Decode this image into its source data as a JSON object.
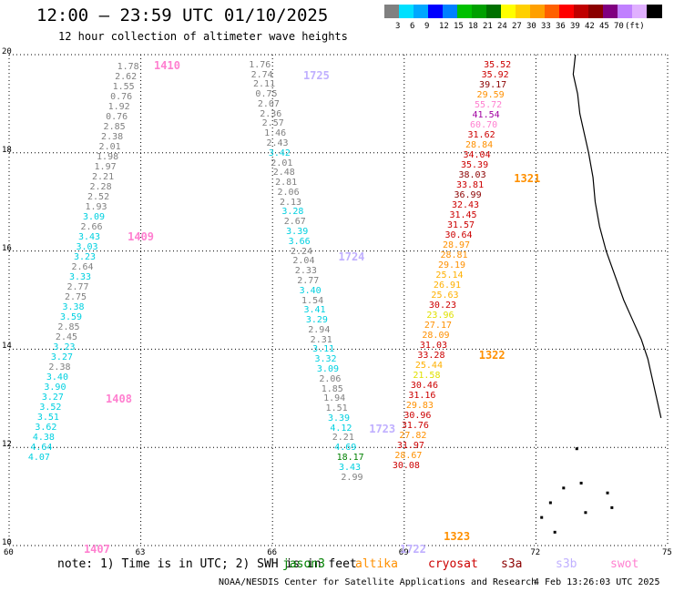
{
  "title": "12:00 – 23:59 UTC 01/10/2025",
  "subtitle": "12 hour collection of altimeter wave heights",
  "colorbar": {
    "colors": [
      "#808080",
      "#00e0ff",
      "#00a8ff",
      "#0000ff",
      "#0080ff",
      "#00c000",
      "#00a000",
      "#007000",
      "#ffff00",
      "#ffd000",
      "#ffa000",
      "#ff6000",
      "#ff0000",
      "#c00000",
      "#8b0000",
      "#800080",
      "#c080ff",
      "#e0b0ff",
      "#000000"
    ],
    "labels": [
      "3",
      "6",
      "9",
      "12",
      "15",
      "18",
      "21",
      "24",
      "27",
      "30",
      "33",
      "36",
      "39",
      "42",
      "45",
      "70",
      "(ft)"
    ]
  },
  "map": {
    "lon_range": [
      60,
      75
    ],
    "lat_range": [
      10,
      20
    ],
    "x_ticks": [
      "60",
      "63",
      "66",
      "69",
      "72",
      "75"
    ],
    "y_ticks": [
      "10",
      "12",
      "14",
      "16",
      "18",
      "20"
    ],
    "grid": "dotted"
  },
  "passes": [
    {
      "label": "1410",
      "color": "#ff80d0",
      "lon": 63.3,
      "lat": 19.8
    },
    {
      "label": "1409",
      "color": "#ff80d0",
      "lon": 62.7,
      "lat": 16.3
    },
    {
      "label": "1408",
      "color": "#ff80d0",
      "lon": 62.2,
      "lat": 13.0
    },
    {
      "label": "1407",
      "color": "#ff80d0",
      "lon": 61.7,
      "lat": 9.95
    },
    {
      "label": "1725",
      "color": "#c0b0ff",
      "lon": 66.7,
      "lat": 19.6
    },
    {
      "label": "1724",
      "color": "#c0b0ff",
      "lon": 67.5,
      "lat": 15.9
    },
    {
      "label": "1723",
      "color": "#c0b0ff",
      "lon": 68.2,
      "lat": 12.4
    },
    {
      "label": "1722",
      "color": "#c0b0ff",
      "lon": 68.9,
      "lat": 9.95
    },
    {
      "label": "1321",
      "color": "#ff9000",
      "lon": 71.5,
      "lat": 17.5
    },
    {
      "label": "1322",
      "color": "#ff9000",
      "lon": 70.7,
      "lat": 13.9
    },
    {
      "label": "1323",
      "color": "#ff9000",
      "lon": 69.9,
      "lat": 10.2
    }
  ],
  "tracks": [
    {
      "start_lon": 63.0,
      "start_lat": 19.75,
      "lon_step": -0.052,
      "lat_step": -0.204,
      "values": [
        {
          "v": "1.78",
          "c": "#808080"
        },
        {
          "v": "2.62",
          "c": "#808080"
        },
        {
          "v": "1.55",
          "c": "#808080"
        },
        {
          "v": "0.76",
          "c": "#808080"
        },
        {
          "v": "1.92",
          "c": "#808080"
        },
        {
          "v": "0.76",
          "c": "#808080"
        },
        {
          "v": "2.85",
          "c": "#808080"
        },
        {
          "v": "2.38",
          "c": "#808080"
        },
        {
          "v": "2.01",
          "c": "#808080"
        },
        {
          "v": "1.98",
          "c": "#808080"
        },
        {
          "v": "1.97",
          "c": "#808080"
        },
        {
          "v": "2.21",
          "c": "#808080"
        },
        {
          "v": "2.28",
          "c": "#808080"
        },
        {
          "v": "2.52",
          "c": "#808080"
        },
        {
          "v": "1.93",
          "c": "#808080"
        },
        {
          "v": "3.09",
          "c": "#00d0e0"
        },
        {
          "v": "2.66",
          "c": "#808080"
        },
        {
          "v": "3.43",
          "c": "#00d0e0"
        },
        {
          "v": "3.03",
          "c": "#00d0e0"
        },
        {
          "v": "3.23",
          "c": "#00d0e0"
        },
        {
          "v": "2.64",
          "c": "#808080"
        },
        {
          "v": "3.33",
          "c": "#00d0e0"
        },
        {
          "v": "2.77",
          "c": "#808080"
        },
        {
          "v": "2.75",
          "c": "#808080"
        },
        {
          "v": "3.38",
          "c": "#00d0e0"
        },
        {
          "v": "3.59",
          "c": "#00d0e0"
        },
        {
          "v": "2.85",
          "c": "#808080"
        },
        {
          "v": "2.45",
          "c": "#808080"
        },
        {
          "v": "3.23",
          "c": "#00d0e0"
        },
        {
          "v": "3.27",
          "c": "#00d0e0"
        },
        {
          "v": "2.38",
          "c": "#808080"
        },
        {
          "v": "3.40",
          "c": "#00d0e0"
        },
        {
          "v": "3.90",
          "c": "#00d0e0"
        },
        {
          "v": "3.27",
          "c": "#00d0e0"
        },
        {
          "v": "3.52",
          "c": "#00d0e0"
        },
        {
          "v": "3.51",
          "c": "#00d0e0"
        },
        {
          "v": "3.62",
          "c": "#00d0e0"
        },
        {
          "v": "4.38",
          "c": "#00d0e0"
        },
        {
          "v": "4.64",
          "c": "#00d0e0"
        },
        {
          "v": "4.07",
          "c": "#00d0e0"
        }
      ]
    },
    {
      "start_lon": 66.0,
      "start_lat": 19.8,
      "lon_step": 0.05,
      "lat_step": -0.2,
      "values": [
        {
          "v": "1.76",
          "c": "#808080"
        },
        {
          "v": "2.74",
          "c": "#808080"
        },
        {
          "v": "2.11",
          "c": "#808080"
        },
        {
          "v": "0.75",
          "c": "#808080"
        },
        {
          "v": "2.07",
          "c": "#808080"
        },
        {
          "v": "2.36",
          "c": "#808080"
        },
        {
          "v": "2.57",
          "c": "#808080"
        },
        {
          "v": "1.46",
          "c": "#808080"
        },
        {
          "v": "2.43",
          "c": "#808080"
        },
        {
          "v": "3.42",
          "c": "#00d0e0"
        },
        {
          "v": "2.01",
          "c": "#808080"
        },
        {
          "v": "2.48",
          "c": "#808080"
        },
        {
          "v": "2.81",
          "c": "#808080"
        },
        {
          "v": "2.06",
          "c": "#808080"
        },
        {
          "v": "2.13",
          "c": "#808080"
        },
        {
          "v": "3.28",
          "c": "#00d0e0"
        },
        {
          "v": "2.67",
          "c": "#808080"
        },
        {
          "v": "3.39",
          "c": "#00d0e0"
        },
        {
          "v": "3.66",
          "c": "#00d0e0"
        },
        {
          "v": "2.24",
          "c": "#808080"
        },
        {
          "v": "2.04",
          "c": "#808080"
        },
        {
          "v": "2.33",
          "c": "#808080"
        },
        {
          "v": "2.77",
          "c": "#808080"
        },
        {
          "v": "3.40",
          "c": "#00d0e0"
        },
        {
          "v": "1.54",
          "c": "#808080"
        },
        {
          "v": "3.41",
          "c": "#00d0e0"
        },
        {
          "v": "3.29",
          "c": "#00d0e0"
        },
        {
          "v": "2.94",
          "c": "#808080"
        },
        {
          "v": "2.31",
          "c": "#808080"
        },
        {
          "v": "3.11",
          "c": "#00d0e0"
        },
        {
          "v": "3.32",
          "c": "#00d0e0"
        },
        {
          "v": "3.09",
          "c": "#00d0e0"
        },
        {
          "v": "2.06",
          "c": "#808080"
        },
        {
          "v": "1.85",
          "c": "#808080"
        },
        {
          "v": "1.94",
          "c": "#808080"
        },
        {
          "v": "1.51",
          "c": "#808080"
        },
        {
          "v": "3.39",
          "c": "#00d0e0"
        },
        {
          "v": "4.12",
          "c": "#00d0e0"
        },
        {
          "v": "2.21",
          "c": "#808080"
        },
        {
          "v": "4.69",
          "c": "#00d0e0"
        },
        {
          "v": "18.17",
          "c": "#008000"
        },
        {
          "v": "3.43",
          "c": "#00d0e0"
        },
        {
          "v": "2.99",
          "c": "#808080"
        }
      ]
    },
    {
      "start_lon": 71.35,
      "start_lat": 19.8,
      "lon_step": -0.052,
      "lat_step": -0.204,
      "values": [
        {
          "v": "35.52",
          "c": "#cc0000"
        },
        {
          "v": "35.92",
          "c": "#cc0000"
        },
        {
          "v": "39.17",
          "c": "#8b0000"
        },
        {
          "v": "29.59",
          "c": "#ff9000"
        },
        {
          "v": "55.72",
          "c": "#ff80d0"
        },
        {
          "v": "41.54",
          "c": "#a000a0"
        },
        {
          "v": "60.70",
          "c": "#ff80d0"
        },
        {
          "v": "31.62",
          "c": "#cc0000"
        },
        {
          "v": "28.84",
          "c": "#ff9000"
        },
        {
          "v": "34.04",
          "c": "#cc0000"
        },
        {
          "v": "35.39",
          "c": "#cc0000"
        },
        {
          "v": "38.03",
          "c": "#8b0000"
        },
        {
          "v": "33.81",
          "c": "#cc0000"
        },
        {
          "v": "36.99",
          "c": "#8b0000"
        },
        {
          "v": "32.43",
          "c": "#cc0000"
        },
        {
          "v": "31.45",
          "c": "#cc0000"
        },
        {
          "v": "31.57",
          "c": "#cc0000"
        },
        {
          "v": "30.64",
          "c": "#cc0000"
        },
        {
          "v": "28.97",
          "c": "#ff9000"
        },
        {
          "v": "28.81",
          "c": "#ff9000"
        },
        {
          "v": "29.19",
          "c": "#ff9000"
        },
        {
          "v": "25.14",
          "c": "#ffb000"
        },
        {
          "v": "26.91",
          "c": "#ffb000"
        },
        {
          "v": "25.63",
          "c": "#ffb000"
        },
        {
          "v": "30.23",
          "c": "#cc0000"
        },
        {
          "v": "23.96",
          "c": "#e0e000"
        },
        {
          "v": "27.17",
          "c": "#ff9000"
        },
        {
          "v": "28.09",
          "c": "#ff9000"
        },
        {
          "v": "31.03",
          "c": "#cc0000"
        },
        {
          "v": "33.28",
          "c": "#cc0000"
        },
        {
          "v": "25.44",
          "c": "#ffb000"
        },
        {
          "v": "21.58",
          "c": "#e0e000"
        },
        {
          "v": "30.46",
          "c": "#cc0000"
        },
        {
          "v": "31.16",
          "c": "#cc0000"
        },
        {
          "v": "29.83",
          "c": "#ff9000"
        },
        {
          "v": "30.96",
          "c": "#cc0000"
        },
        {
          "v": "31.76",
          "c": "#cc0000"
        },
        {
          "v": "27.82",
          "c": "#ff9000"
        },
        {
          "v": "31.97",
          "c": "#cc0000"
        },
        {
          "v": "28.67",
          "c": "#ff9000"
        },
        {
          "v": "30.08",
          "c": "#cc0000"
        }
      ]
    }
  ],
  "note": "note: 1) Time is in UTC; 2) SWH is in feet",
  "satellites": [
    {
      "name": "jason3",
      "color": "#008000"
    },
    {
      "name": "altika",
      "color": "#ff9000"
    },
    {
      "name": "cryosat",
      "color": "#cc0000"
    },
    {
      "name": "s3a",
      "color": "#8b0000"
    },
    {
      "name": "s3b",
      "color": "#c0b0ff"
    },
    {
      "name": "swot",
      "color": "#ff80d0"
    }
  ],
  "credit": "NOAA/NESDIS Center for Satellite Applications and Research",
  "timestamp": "4 Feb 13:26:03 UTC 2025"
}
